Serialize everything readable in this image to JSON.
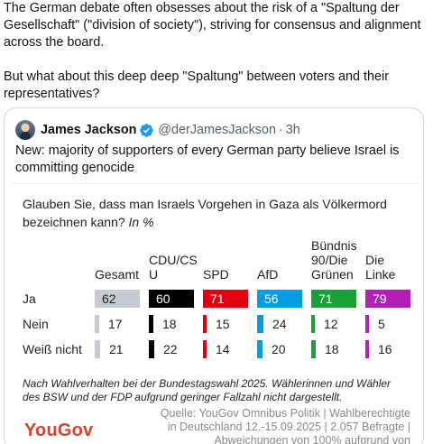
{
  "post": {
    "paragraph1": "The German debate often obsesses about the risk of a \"Spaltung der Gesellschaft\" (\"division of society\"), striving for consensus and alignment across the board.",
    "paragraph2": "But what about this deep deep \"Spaltung\" between voters and their representatives?"
  },
  "quote": {
    "author_name": "James Jackson",
    "handle": "@derJamesJackson",
    "separator": "·",
    "time": "3h",
    "text": "New: majority of supporters of every German party believe Israel is committing genocide",
    "icons": {
      "verified": "verified-badge-icon",
      "avatar": "avatar"
    }
  },
  "chart_data": {
    "type": "table",
    "title": "Glauben Sie, dass man Israels Vorgehen in Gaza als Völkermord bezeichnen kann?",
    "unit": "In %",
    "columns": [
      {
        "label": "Gesamt",
        "color": "#c5cad3"
      },
      {
        "label": "CDU/CS\nU",
        "color": "#000000"
      },
      {
        "label": "SPD",
        "color": "#e3000f"
      },
      {
        "label": "AfD",
        "color": "#009ee0"
      },
      {
        "label": "Bündnis\n90/Die\nGrünen",
        "color": "#1aa037"
      },
      {
        "label": "Die\nLinke",
        "color": "#be3075"
      }
    ],
    "rows": [
      {
        "label": "Ja",
        "values": [
          62,
          60,
          71,
          56,
          71,
          79
        ]
      },
      {
        "label": "Nein",
        "values": [
          17,
          18,
          15,
          24,
          12,
          5
        ]
      },
      {
        "label": "Weiß nicht",
        "values": [
          21,
          22,
          14,
          20,
          18,
          16
        ]
      }
    ],
    "linke_color": "#b320b8",
    "footnote": "Nach Wahlverhalten bei der Bundestagswahl 2025. Wählerinnen und Wähler des BSW und der FDP aufgrund geringer Fallzahl nicht dargestellt.",
    "source": "Quelle: YouGov Omnibus Politik | Wahlberechtigte in Deutschland 12.-15.09.2025 | 2.057 Befragte | Abweichungen von 100% aufgrund von",
    "logo": "YouGov"
  }
}
